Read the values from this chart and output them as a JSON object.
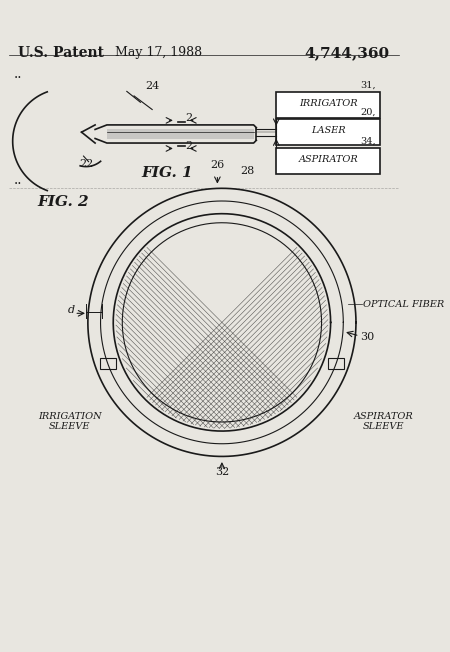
{
  "bg_color": "#e8e6e0",
  "line_color": "#1a1a1a",
  "title_text": "U.S. Patent",
  "date_text": "May 17, 1988",
  "patent_num": "4,744,360",
  "fig1_label": "FIG. 1",
  "fig2_label": "FIG. 2",
  "box_labels": [
    "IRRIGATOR",
    "LASER",
    "ASPIRATOR"
  ],
  "box_nums": [
    "31,",
    "20,",
    "34,"
  ],
  "fig2_labels": [
    "OPTICAL FIBER",
    "IRRIGATION\nSLEEVE",
    "ASPIRATOR\nSLEEVE"
  ],
  "fig2_nums": [
    "26",
    "28",
    "30",
    "32",
    "d"
  ]
}
